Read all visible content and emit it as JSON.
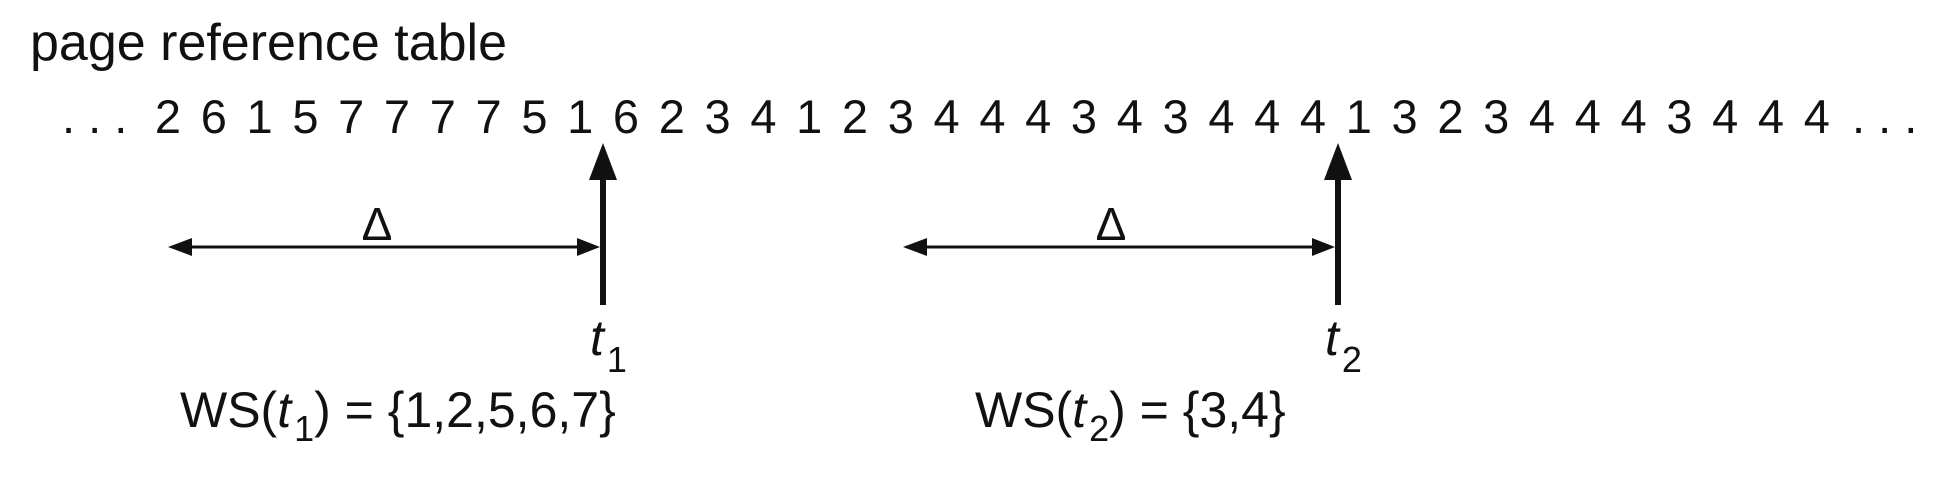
{
  "title": "page reference table",
  "sequence": {
    "leading_ellipsis": ". . .",
    "trailing_ellipsis": ". . .",
    "references": [
      "2",
      "6",
      "1",
      "5",
      "7",
      "7",
      "7",
      "7",
      "5",
      "1",
      "6",
      "2",
      "3",
      "4",
      "1",
      "2",
      "3",
      "4",
      "4",
      "4",
      "3",
      "4",
      "3",
      "4",
      "4",
      "4",
      "1",
      "3",
      "2",
      "3",
      "4",
      "4",
      "4",
      "3",
      "4",
      "4",
      "4"
    ]
  },
  "markers": [
    {
      "delta_label": "Δ",
      "time_var": "t",
      "time_sub": "1",
      "ws_prefix": "WS(",
      "ws_var": "t",
      "ws_sub": "1",
      "ws_suffix": ") = {1,2,5,6,7}"
    },
    {
      "delta_label": "Δ",
      "time_var": "t",
      "time_sub": "2",
      "ws_prefix": "WS(",
      "ws_var": "t",
      "ws_sub": "2",
      "ws_suffix": ") = {3,4}"
    }
  ],
  "colors": {
    "ink": "#111111",
    "background": "#ffffff"
  }
}
